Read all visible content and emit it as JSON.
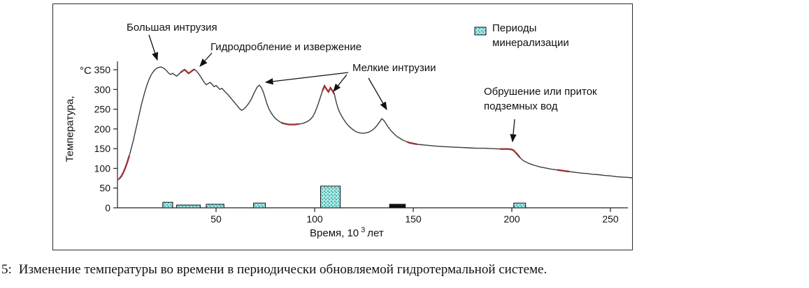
{
  "figure": {
    "caption_number": "5:",
    "caption_text": "Изменение температуры во времени в периодически обновляемой гидротермальной системе."
  },
  "chart_data": {
    "type": "line",
    "title": "",
    "xlabel": "Время, 10³ лет",
    "ylabel": "Температура, °С",
    "axis_labels": {
      "ylabel_rotated": "Температура,",
      "ylabel_units": "°С",
      "xlabel_prefix": "Время, 10",
      "xlabel_sup": "3",
      "xlabel_suffix": "лет"
    },
    "xlim": [
      0,
      262
    ],
    "ylim": [
      0,
      380
    ],
    "x_ticks": [
      50,
      100,
      150,
      200,
      250
    ],
    "y_ticks": [
      0,
      50,
      100,
      150,
      200,
      250,
      300,
      350
    ],
    "grid": false,
    "legend_position": "top-right",
    "legend_label": "Периоды\nминерализации",
    "annotations": {
      "big_intrusion": "Большая интрузия",
      "hydrofracturing": "Гидродробление и извержение",
      "small_intrusions": "Мелкие интрузии",
      "collapse": "Обрушение или приток\nподземных вод"
    },
    "series": [
      {
        "name": "Температура",
        "points": [
          [
            0,
            70
          ],
          [
            1,
            74
          ],
          [
            2,
            80
          ],
          [
            3,
            90
          ],
          [
            4,
            102
          ],
          [
            5,
            116
          ],
          [
            6,
            132
          ],
          [
            7,
            150
          ],
          [
            8,
            170
          ],
          [
            9,
            192
          ],
          [
            10,
            214
          ],
          [
            11,
            236
          ],
          [
            12,
            258
          ],
          [
            13,
            278
          ],
          [
            14,
            296
          ],
          [
            15,
            312
          ],
          [
            16,
            325
          ],
          [
            17,
            336
          ],
          [
            18,
            344
          ],
          [
            19,
            350
          ],
          [
            20,
            354
          ],
          [
            21,
            356
          ],
          [
            22,
            357
          ],
          [
            23,
            355
          ],
          [
            24,
            352
          ],
          [
            25,
            347
          ],
          [
            26,
            341
          ],
          [
            27,
            338
          ],
          [
            28,
            341
          ],
          [
            29,
            337
          ],
          [
            30,
            334
          ],
          [
            31,
            338
          ],
          [
            32,
            343
          ],
          [
            33,
            347
          ],
          [
            34,
            350
          ],
          [
            35,
            346
          ],
          [
            36,
            341
          ],
          [
            37,
            344
          ],
          [
            38,
            348
          ],
          [
            39,
            351
          ],
          [
            40,
            347
          ],
          [
            41,
            341
          ],
          [
            42,
            334
          ],
          [
            43,
            326
          ],
          [
            44,
            318
          ],
          [
            45,
            312
          ],
          [
            46,
            315
          ],
          [
            47,
            318
          ],
          [
            48,
            313
          ],
          [
            49,
            307
          ],
          [
            50,
            310
          ],
          [
            51,
            305
          ],
          [
            52,
            300
          ],
          [
            53,
            303
          ],
          [
            54,
            297
          ],
          [
            55,
            292
          ],
          [
            56,
            287
          ],
          [
            57,
            281
          ],
          [
            58,
            275
          ],
          [
            59,
            269
          ],
          [
            60,
            263
          ],
          [
            61,
            257
          ],
          [
            62,
            251
          ],
          [
            63,
            247
          ],
          [
            64,
            250
          ],
          [
            65,
            255
          ],
          [
            66,
            261
          ],
          [
            67,
            268
          ],
          [
            68,
            277
          ],
          [
            69,
            288
          ],
          [
            70,
            298
          ],
          [
            71,
            307
          ],
          [
            72,
            311
          ],
          [
            73,
            304
          ],
          [
            74,
            293
          ],
          [
            75,
            277
          ],
          [
            76,
            261
          ],
          [
            77,
            249
          ],
          [
            78,
            240
          ],
          [
            79,
            233
          ],
          [
            80,
            227
          ],
          [
            81,
            223
          ],
          [
            82,
            219
          ],
          [
            83,
            216
          ],
          [
            84,
            214
          ],
          [
            85,
            213
          ],
          [
            86,
            212
          ],
          [
            87,
            211
          ],
          [
            88,
            211
          ],
          [
            89,
            211
          ],
          [
            90,
            211
          ],
          [
            91,
            212
          ],
          [
            92,
            212
          ],
          [
            93,
            213
          ],
          [
            94,
            214
          ],
          [
            95,
            216
          ],
          [
            96,
            218
          ],
          [
            97,
            221
          ],
          [
            98,
            225
          ],
          [
            99,
            231
          ],
          [
            100,
            240
          ],
          [
            101,
            252
          ],
          [
            102,
            266
          ],
          [
            103,
            282
          ],
          [
            104,
            297
          ],
          [
            105,
            309
          ],
          [
            106,
            301
          ],
          [
            107,
            294
          ],
          [
            108,
            304
          ],
          [
            109,
            297
          ],
          [
            110,
            288
          ],
          [
            111,
            267
          ],
          [
            112,
            250
          ],
          [
            113,
            239
          ],
          [
            114,
            230
          ],
          [
            115,
            222
          ],
          [
            116,
            215
          ],
          [
            117,
            209
          ],
          [
            118,
            204
          ],
          [
            119,
            200
          ],
          [
            120,
            196
          ],
          [
            121,
            193
          ],
          [
            122,
            191
          ],
          [
            123,
            190
          ],
          [
            124,
            189
          ],
          [
            125,
            189
          ],
          [
            126,
            190
          ],
          [
            127,
            191
          ],
          [
            128,
            193
          ],
          [
            129,
            196
          ],
          [
            130,
            200
          ],
          [
            131,
            205
          ],
          [
            132,
            211
          ],
          [
            133,
            218
          ],
          [
            134,
            226
          ],
          [
            135,
            222
          ],
          [
            136,
            215
          ],
          [
            137,
            207
          ],
          [
            138,
            200
          ],
          [
            139,
            194
          ],
          [
            140,
            189
          ],
          [
            141,
            184
          ],
          [
            142,
            180
          ],
          [
            143,
            177
          ],
          [
            144,
            174
          ],
          [
            145,
            171
          ],
          [
            146,
            169
          ],
          [
            147,
            167
          ],
          [
            148,
            165
          ],
          [
            150,
            163
          ],
          [
            152,
            161
          ],
          [
            154,
            160
          ],
          [
            156,
            159
          ],
          [
            158,
            158
          ],
          [
            160,
            157
          ],
          [
            163,
            156
          ],
          [
            166,
            155
          ],
          [
            170,
            154
          ],
          [
            174,
            153
          ],
          [
            178,
            152
          ],
          [
            182,
            151
          ],
          [
            186,
            151
          ],
          [
            190,
            150
          ],
          [
            194,
            149
          ],
          [
            198,
            149
          ],
          [
            200,
            148
          ],
          [
            201,
            145
          ],
          [
            202,
            140
          ],
          [
            203,
            134
          ],
          [
            204,
            128
          ],
          [
            205,
            123
          ],
          [
            206,
            119
          ],
          [
            208,
            114
          ],
          [
            210,
            110
          ],
          [
            212,
            107
          ],
          [
            214,
            104
          ],
          [
            216,
            102
          ],
          [
            218,
            100
          ],
          [
            220,
            98
          ],
          [
            223,
            96
          ],
          [
            226,
            94
          ],
          [
            229,
            92
          ],
          [
            232,
            90
          ],
          [
            235,
            88
          ],
          [
            238,
            87
          ],
          [
            241,
            85
          ],
          [
            244,
            84
          ],
          [
            247,
            82
          ],
          [
            250,
            81
          ],
          [
            253,
            79
          ],
          [
            256,
            78
          ],
          [
            259,
            77
          ],
          [
            261,
            76
          ]
        ]
      }
    ],
    "red_segments": [
      [
        1,
        6
      ],
      [
        32,
        39
      ],
      [
        83,
        92
      ],
      [
        104,
        110
      ],
      [
        147,
        153
      ],
      [
        193,
        204
      ],
      [
        221,
        231
      ]
    ],
    "mineralization_periods": [
      {
        "x_start": 23,
        "x_end": 28,
        "height": 14,
        "style": "checker"
      },
      {
        "x_start": 30,
        "x_end": 42,
        "height": 7,
        "style": "checker"
      },
      {
        "x_start": 45,
        "x_end": 54,
        "height": 9,
        "style": "checker"
      },
      {
        "x_start": 69,
        "x_end": 75,
        "height": 12,
        "style": "checker"
      },
      {
        "x_start": 103,
        "x_end": 113,
        "height": 55,
        "style": "checker"
      },
      {
        "x_start": 138,
        "x_end": 146,
        "height": 9,
        "style": "black"
      },
      {
        "x_start": 201,
        "x_end": 207,
        "height": 12,
        "style": "checker"
      }
    ],
    "colors": {
      "line": "#3c3c3c",
      "red_marks": "#9a3434",
      "mineral_fill": "#ade8e6",
      "mineral_dot": "#4ab6b2",
      "mineral_black": "#101010",
      "text": "#111111"
    }
  }
}
